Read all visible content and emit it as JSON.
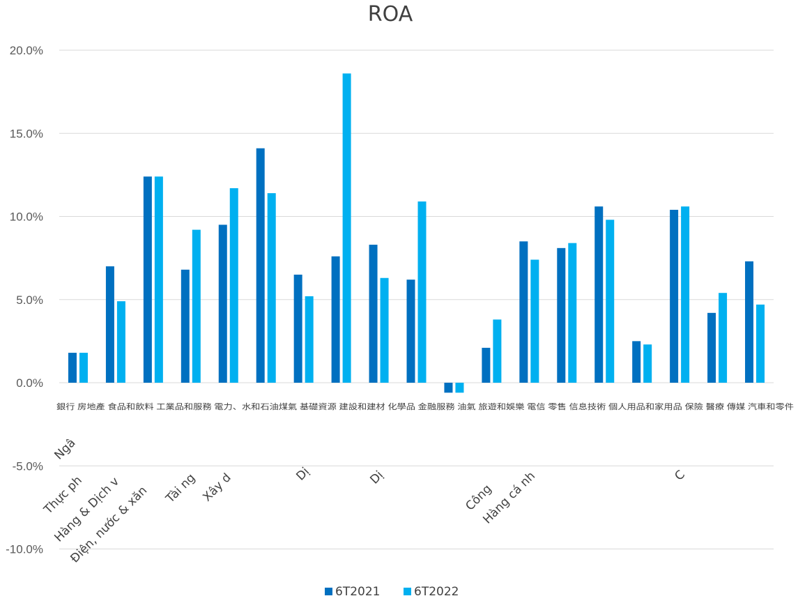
{
  "chart_data": {
    "type": "bar",
    "title": "ROA",
    "categories": [
      "銀行",
      "房地產",
      "食品和飲料",
      "工業品和服務",
      "電力、水和石油煤氣",
      "基礎資源",
      "建設和建材",
      "化學品",
      "金融服務",
      "油氣",
      "旅遊和娛樂",
      "電信",
      "零售",
      "信息技術",
      "個人用品和家用品",
      "保險",
      "醫療",
      "傳媒",
      "汽車和零件"
    ],
    "series": [
      {
        "name": "6T2021",
        "color": "#0070c0",
        "values": [
          1.8,
          7.0,
          12.4,
          6.8,
          9.5,
          14.1,
          6.5,
          7.6,
          8.3,
          6.2,
          -0.6,
          2.1,
          8.5,
          8.1,
          10.6,
          2.5,
          10.4,
          4.2,
          7.3
        ]
      },
      {
        "name": "6T2022",
        "color": "#00b0f0",
        "values": [
          1.8,
          4.9,
          12.4,
          9.2,
          11.7,
          11.4,
          5.2,
          18.6,
          6.3,
          10.9,
          -0.6,
          3.8,
          7.4,
          8.4,
          9.8,
          2.3,
          10.6,
          5.4,
          4.7
        ]
      }
    ],
    "yticks": [
      "20.0%",
      "15.0%",
      "10.0%",
      "5.0%",
      "0.0%",
      "-5.0%",
      "-10.0%"
    ],
    "ylim": [
      -10,
      20
    ],
    "xlabel": "",
    "ylabel": "",
    "grid": true,
    "legend": "bottom"
  },
  "overlay_labels": [
    "Ngâ",
    "Thực ph",
    "Hàng & Dịch v",
    "Điện, nước & xăn",
    "Tài ng",
    "Xây d",
    "Dị",
    "Dị",
    "Công",
    "Hàng cá nh",
    "C"
  ]
}
